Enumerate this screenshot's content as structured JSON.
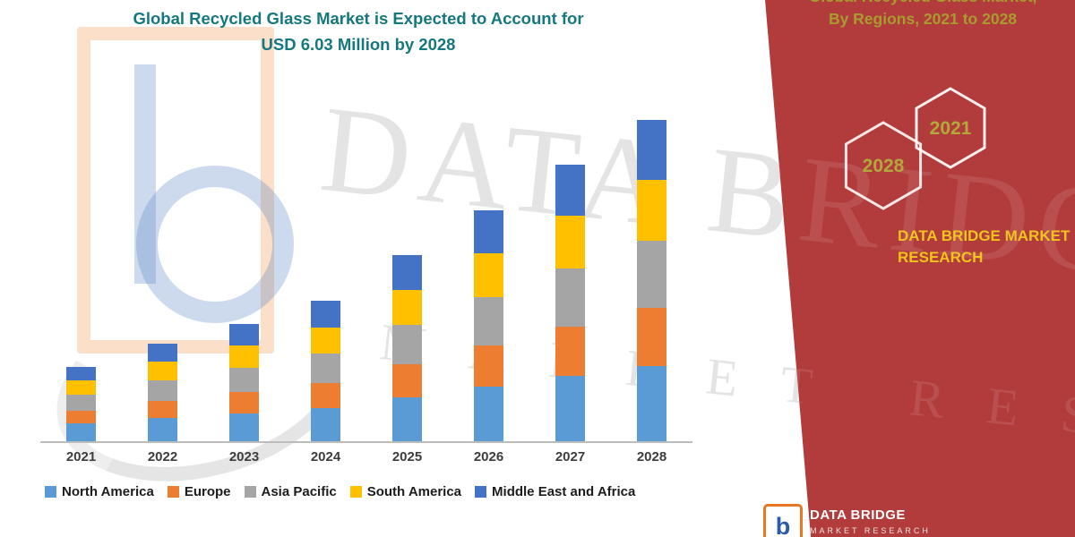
{
  "meta": {
    "background": "#ffffff",
    "panel_color": "#b23b3c",
    "title_color": "#15787e",
    "olive_text_color": "#a89c2f",
    "yellow_text_color": "#f1c51c"
  },
  "header": {
    "title_line1": "Global Recycled Glass Market is Expected to Account for",
    "title_line2": "USD 6.03 Million by 2028"
  },
  "chart_data": {
    "type": "bar",
    "stacked": true,
    "title": "Global Recycled Glass Market is Expected to Account for USD 6.03 Million by 2028",
    "categories": [
      "2021",
      "2022",
      "2023",
      "2024",
      "2025",
      "2026",
      "2027",
      "2028"
    ],
    "series": [
      {
        "name": "North America",
        "color": "#5B9BD5",
        "values": [
          0.33,
          0.43,
          0.52,
          0.62,
          0.82,
          1.02,
          1.22,
          1.42
        ]
      },
      {
        "name": "Europe",
        "color": "#ED7D31",
        "values": [
          0.25,
          0.33,
          0.4,
          0.47,
          0.63,
          0.78,
          0.94,
          1.09
        ]
      },
      {
        "name": "Asia Pacific",
        "color": "#A5A5A5",
        "values": [
          0.29,
          0.38,
          0.46,
          0.55,
          0.73,
          0.91,
          1.09,
          1.26
        ]
      },
      {
        "name": "South America",
        "color": "#FFC000",
        "values": [
          0.27,
          0.35,
          0.42,
          0.5,
          0.66,
          0.82,
          0.98,
          1.14
        ]
      },
      {
        "name": "Middle East and Africa",
        "color": "#4472C4",
        "values": [
          0.26,
          0.34,
          0.41,
          0.49,
          0.66,
          0.8,
          0.97,
          1.12
        ]
      }
    ],
    "totals_by_year": [
      1.4,
      1.83,
      2.21,
      2.63,
      3.5,
      4.33,
      5.2,
      6.03
    ],
    "xlabel": "",
    "ylabel": "",
    "ylim": [
      0,
      6.3
    ],
    "grid": false,
    "y_axis_visible": false,
    "legend_position": "bottom"
  },
  "right_panel": {
    "heading_line1": "Global Recycled Glass Market,",
    "heading_line2": "By Regions, 2021 to 2028",
    "hexagons": [
      {
        "label": "2028"
      },
      {
        "label": "2021"
      }
    ],
    "brand_line1": "DATA BRIDGE MARKET",
    "brand_line2": "RESEARCH"
  },
  "watermark": {
    "line1": "DATA BRIDGE",
    "line2": "MARKET RESEARCH"
  },
  "footer_logo": {
    "letter": "b",
    "name": "DATA BRIDGE",
    "sub": "MARKET RESEARCH"
  }
}
